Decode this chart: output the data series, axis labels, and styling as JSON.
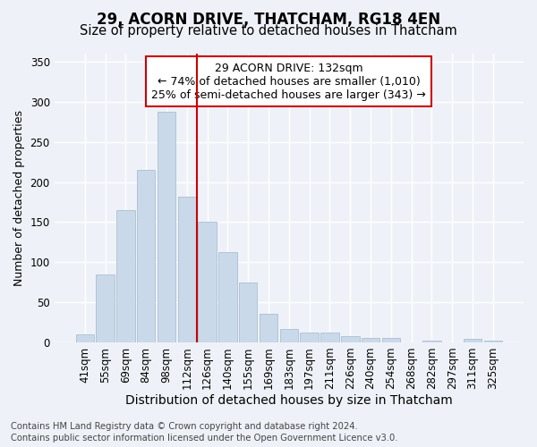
{
  "title1": "29, ACORN DRIVE, THATCHAM, RG18 4EN",
  "title2": "Size of property relative to detached houses in Thatcham",
  "xlabel": "Distribution of detached houses by size in Thatcham",
  "ylabel": "Number of detached properties",
  "categories": [
    "41sqm",
    "55sqm",
    "69sqm",
    "84sqm",
    "98sqm",
    "112sqm",
    "126sqm",
    "140sqm",
    "155sqm",
    "169sqm",
    "183sqm",
    "197sqm",
    "211sqm",
    "226sqm",
    "240sqm",
    "254sqm",
    "268sqm",
    "282sqm",
    "297sqm",
    "311sqm",
    "325sqm"
  ],
  "values": [
    10,
    85,
    165,
    215,
    287,
    182,
    150,
    113,
    75,
    36,
    17,
    12,
    12,
    8,
    6,
    5,
    0,
    2,
    0,
    4,
    2
  ],
  "bar_color": "#c9d9ea",
  "bar_edge_color": "#aabfcf",
  "vline_x": 5.5,
  "vline_color": "#cc0000",
  "annotation_text": "29 ACORN DRIVE: 132sqm\n← 74% of detached houses are smaller (1,010)\n25% of semi-detached houses are larger (343) →",
  "annotation_box_color": "#ffffff",
  "annotation_box_edge_color": "#cc0000",
  "ylim": [
    0,
    360
  ],
  "yticks": [
    0,
    50,
    100,
    150,
    200,
    250,
    300,
    350
  ],
  "footer1": "Contains HM Land Registry data © Crown copyright and database right 2024.",
  "footer2": "Contains public sector information licensed under the Open Government Licence v3.0.",
  "bg_color": "#eef2f8",
  "grid_color": "#ffffff",
  "title1_fontsize": 12,
  "title2_fontsize": 10.5,
  "xlabel_fontsize": 10,
  "ylabel_fontsize": 9,
  "tick_fontsize": 8.5,
  "footer_fontsize": 7.2,
  "ann_fontsize": 9
}
